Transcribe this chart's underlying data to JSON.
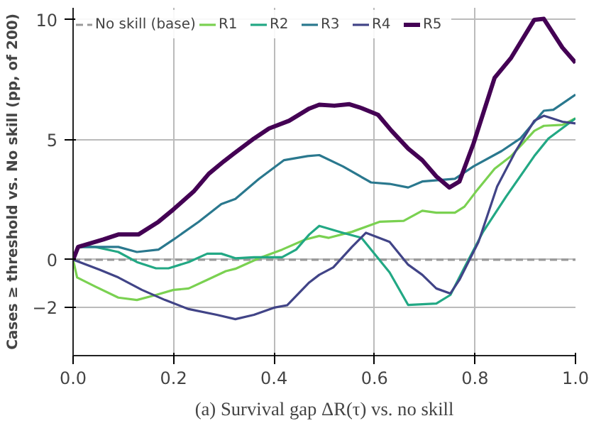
{
  "chart_data": {
    "type": "line",
    "ylabel": "Cases ≥ threshold vs. No skill (pp, of 200)",
    "annotations": [
      "(a) Survival gap ΔR(τ) vs. no skill"
    ],
    "xlim": [
      0,
      1
    ],
    "ylim": [
      -4,
      10.5
    ],
    "xticks": [
      {
        "value": 0,
        "label": "0.0"
      },
      {
        "value": 0.2,
        "label": "0.2"
      },
      {
        "value": 0.4,
        "label": "0.4"
      },
      {
        "value": 0.6,
        "label": "0.6"
      },
      {
        "value": 0.8,
        "label": "0.8"
      },
      {
        "value": 1,
        "label": "1.0"
      }
    ],
    "yticks": [
      {
        "value": -2,
        "label": "−2"
      },
      0,
      5,
      10
    ],
    "grid": true,
    "legend": "top left",
    "marker": "none",
    "line_style": "solid",
    "series": [
      {
        "name": "No skill (base)",
        "color": "#999999",
        "line_style": "dashed",
        "x": [
          0,
          1
        ],
        "values": [
          0,
          0
        ]
      },
      {
        "name": "R1",
        "color": "#7ad151",
        "x": [
          0,
          0.008,
          0.044,
          0.09,
          0.127,
          0.165,
          0.2,
          0.23,
          0.267,
          0.304,
          0.323,
          0.37,
          0.416,
          0.462,
          0.49,
          0.509,
          0.555,
          0.61,
          0.658,
          0.695,
          0.723,
          0.76,
          0.779,
          0.802,
          0.839,
          0.872,
          0.918,
          0.937,
          0.974,
          1.0
        ],
        "values": [
          0,
          -0.74,
          -1.12,
          -1.58,
          -1.68,
          -1.47,
          -1.26,
          -1.2,
          -0.84,
          -0.48,
          -0.38,
          0.06,
          0.42,
          0.84,
          0.99,
          0.91,
          1.16,
          1.58,
          1.62,
          2.04,
          1.96,
          1.96,
          2.21,
          2.84,
          3.79,
          4.32,
          5.37,
          5.58,
          5.62,
          5.89
        ]
      },
      {
        "name": "R2",
        "color": "#22a884",
        "x": [
          0,
          0.01,
          0.044,
          0.09,
          0.127,
          0.165,
          0.19,
          0.23,
          0.267,
          0.295,
          0.323,
          0.36,
          0.416,
          0.444,
          0.47,
          0.49,
          0.537,
          0.574,
          0.63,
          0.667,
          0.723,
          0.751,
          0.779,
          0.816,
          0.862,
          0.918,
          0.946,
          1.0
        ],
        "values": [
          0,
          0.53,
          0.53,
          0.32,
          -0.1,
          -0.36,
          -0.36,
          -0.1,
          0.25,
          0.25,
          0.06,
          0.1,
          0.1,
          0.42,
          1.05,
          1.41,
          1.12,
          0.91,
          -0.53,
          -1.89,
          -1.83,
          -1.47,
          -0.32,
          1.16,
          2.63,
          4.32,
          5.05,
          5.89
        ]
      },
      {
        "name": "R3",
        "color": "#2a788e",
        "x": [
          0,
          0.01,
          0.09,
          0.127,
          0.17,
          0.2,
          0.25,
          0.295,
          0.323,
          0.37,
          0.42,
          0.467,
          0.49,
          0.537,
          0.593,
          0.63,
          0.667,
          0.695,
          0.76,
          0.797,
          0.853,
          0.89,
          0.937,
          0.956,
          1.0
        ],
        "values": [
          0,
          0.53,
          0.53,
          0.32,
          0.42,
          0.84,
          1.58,
          2.32,
          2.53,
          3.37,
          4.15,
          4.32,
          4.36,
          3.89,
          3.22,
          3.16,
          3.01,
          3.26,
          3.37,
          3.89,
          4.53,
          5.05,
          6.21,
          6.25,
          6.88
        ]
      },
      {
        "name": "R4",
        "color": "#414487",
        "x": [
          0,
          0.053,
          0.09,
          0.137,
          0.183,
          0.23,
          0.286,
          0.323,
          0.36,
          0.4,
          0.426,
          0.47,
          0.49,
          0.518,
          0.555,
          0.583,
          0.63,
          0.667,
          0.695,
          0.723,
          0.751,
          0.769,
          0.807,
          0.844,
          0.881,
          0.918,
          0.937,
          0.974,
          1.0
        ],
        "values": [
          0,
          -0.42,
          -0.74,
          -1.26,
          -1.68,
          -2.06,
          -2.3,
          -2.48,
          -2.3,
          -2.0,
          -1.9,
          -0.95,
          -0.63,
          -0.32,
          0.53,
          1.12,
          0.74,
          -0.21,
          -0.63,
          -1.2,
          -1.41,
          -0.84,
          0.74,
          3.05,
          4.53,
          5.79,
          6.0,
          5.75,
          5.68
        ]
      },
      {
        "name": "R5",
        "color": "#440154",
        "x": [
          0,
          0.01,
          0.06,
          0.09,
          0.13,
          0.17,
          0.2,
          0.24,
          0.27,
          0.3,
          0.32,
          0.36,
          0.39,
          0.43,
          0.47,
          0.49,
          0.52,
          0.55,
          0.574,
          0.607,
          0.634,
          0.667,
          0.695,
          0.723,
          0.749,
          0.769,
          0.797,
          0.839,
          0.872,
          0.918,
          0.937,
          0.974,
          1.0
        ],
        "values": [
          0,
          0.53,
          0.84,
          1.05,
          1.05,
          1.58,
          2.1,
          2.84,
          3.58,
          4.1,
          4.42,
          5.05,
          5.47,
          5.79,
          6.3,
          6.46,
          6.42,
          6.48,
          6.32,
          6.04,
          5.37,
          4.63,
          4.15,
          3.47,
          3.01,
          3.26,
          4.84,
          7.58,
          8.42,
          10.0,
          10.04,
          8.84,
          8.21
        ]
      }
    ]
  }
}
